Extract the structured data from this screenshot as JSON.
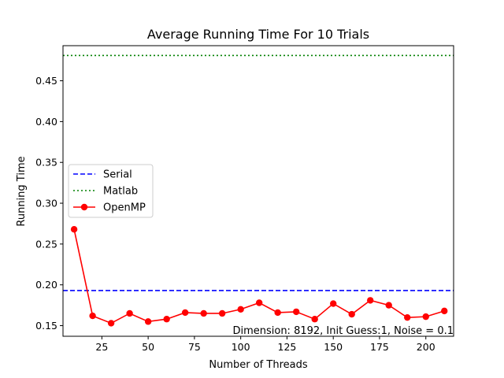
{
  "chart_data": {
    "type": "line",
    "title": "Average Running Time For 10 Trials",
    "xlabel": "Number of Threads",
    "ylabel": "Running Time",
    "xlim": [
      4,
      215
    ],
    "ylim": [
      0.137,
      0.493
    ],
    "xticks": [
      25,
      50,
      75,
      100,
      125,
      150,
      175,
      200
    ],
    "xtick_labels": [
      "25",
      "50",
      "75",
      "100",
      "125",
      "150",
      "175",
      "200"
    ],
    "yticks": [
      0.15,
      0.2,
      0.25,
      0.3,
      0.35,
      0.4,
      0.45
    ],
    "ytick_labels": [
      "0.15",
      "0.20",
      "0.25",
      "0.30",
      "0.35",
      "0.40",
      "0.45"
    ],
    "grid": false,
    "legend_position": "center-left",
    "series": [
      {
        "name": "Serial",
        "kind": "hline",
        "y": 0.193,
        "color": "#0000ff",
        "style": "dashed"
      },
      {
        "name": "Matlab",
        "kind": "hline",
        "y": 0.481,
        "color": "#008000",
        "style": "dotted"
      },
      {
        "name": "OpenMP",
        "kind": "line-marker",
        "color": "#ff0000",
        "x": [
          10,
          20,
          30,
          40,
          50,
          60,
          70,
          80,
          90,
          100,
          110,
          120,
          130,
          140,
          150,
          160,
          170,
          180,
          190,
          200,
          210
        ],
        "y": [
          0.268,
          0.162,
          0.153,
          0.165,
          0.155,
          0.158,
          0.166,
          0.165,
          0.165,
          0.17,
          0.178,
          0.166,
          0.167,
          0.158,
          0.177,
          0.164,
          0.181,
          0.175,
          0.16,
          0.161,
          0.168
        ]
      }
    ],
    "annotation": "Dimension: 8192, Init Guess:1, Noise = 0.1"
  }
}
